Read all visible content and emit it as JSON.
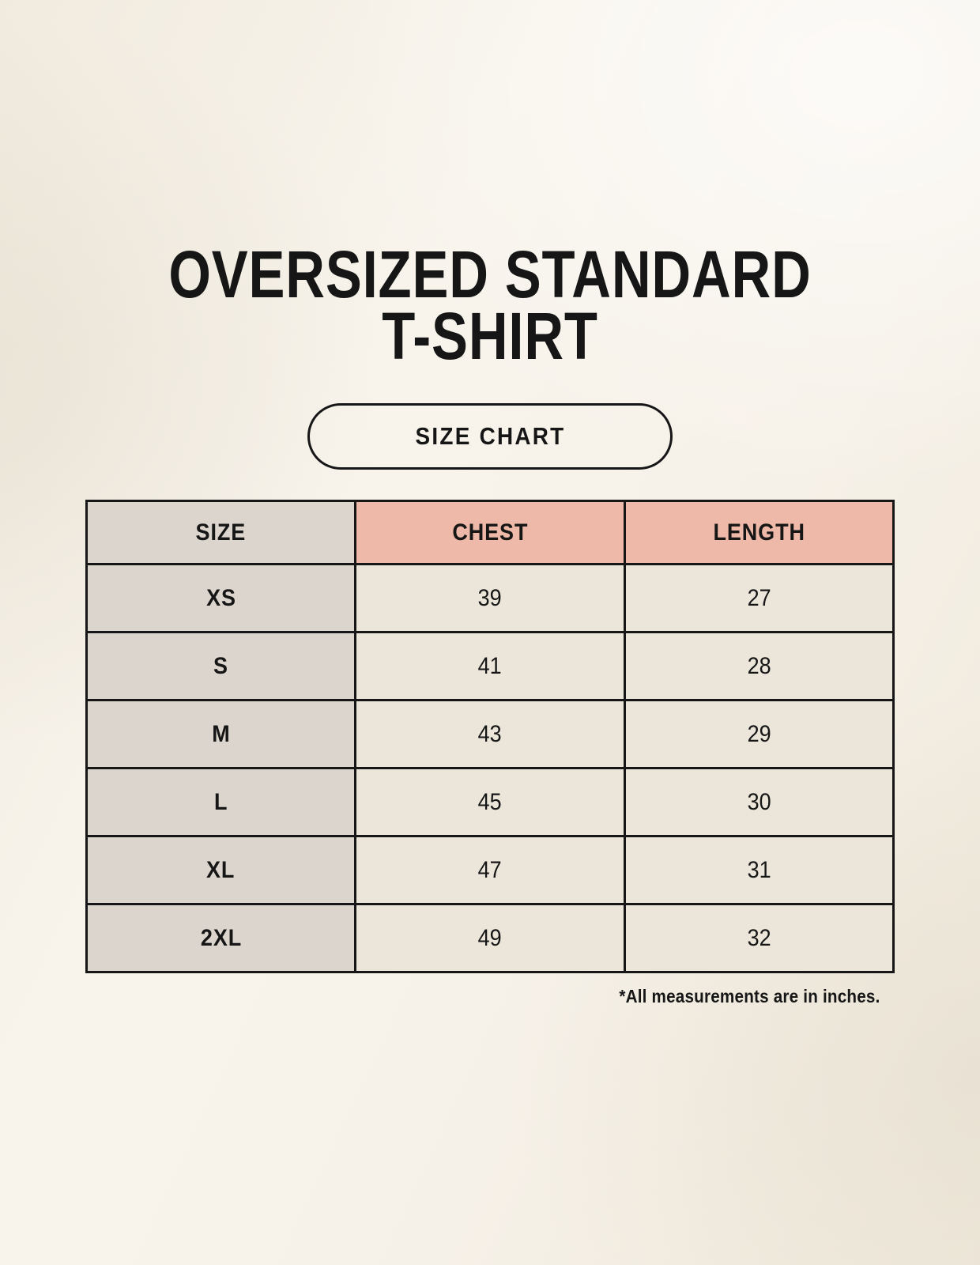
{
  "header": {
    "title_line1": "OVERSIZED STANDARD",
    "title_line2": "T-SHIRT",
    "size_chart_label": "SIZE CHART"
  },
  "footnote": "*All measurements are in inches.",
  "colors": {
    "page_bg": "#f6f1e8",
    "header_cell_pink": "#eeb9a8",
    "size_column_taupe": "#dcd5ce",
    "data_cell_cream": "#ebe5da",
    "table_border": "#161616",
    "text": "#161616"
  },
  "chart_data": {
    "type": "table",
    "title": "OVERSIZED STANDARD T-SHIRT",
    "columns": [
      "SIZE",
      "CHEST",
      "LENGTH"
    ],
    "rows": [
      {
        "size": "XS",
        "chest": "39",
        "length": "27"
      },
      {
        "size": "S",
        "chest": "41",
        "length": "28"
      },
      {
        "size": "M",
        "chest": "43",
        "length": "29"
      },
      {
        "size": "L",
        "chest": "45",
        "length": "30"
      },
      {
        "size": "XL",
        "chest": "47",
        "length": "31"
      },
      {
        "size": "2XL",
        "chest": "49",
        "length": "32"
      }
    ],
    "units_note": "*All measurements are in inches."
  }
}
